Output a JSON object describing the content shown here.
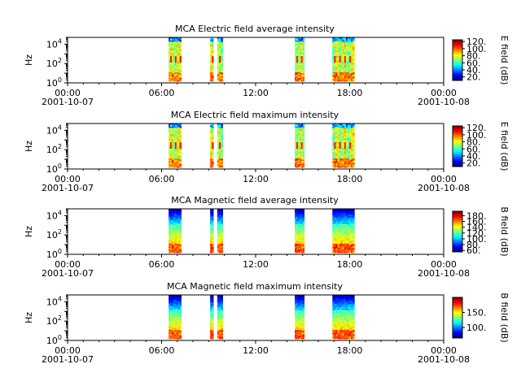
{
  "chart_data": [
    {
      "type": "heatmap",
      "title": "MCA  Electric field average intensity",
      "ylabel": "Hz",
      "colorbar_label": "E field (dB)",
      "x_ticks": [
        {
          "t": 0,
          "time": "00:00",
          "date": "2001-10-07"
        },
        {
          "t": 6,
          "time": "06:00",
          "date": ""
        },
        {
          "t": 12,
          "time": "12:00",
          "date": ""
        },
        {
          "t": 18,
          "time": "18:00",
          "date": ""
        },
        {
          "t": 24,
          "time": "00:00",
          "date": "2001-10-08"
        }
      ],
      "xlim_hours": [
        0,
        24
      ],
      "y_ticks": [
        {
          "exp": 0,
          "base": "10",
          "sup": "0"
        },
        {
          "exp": 2,
          "base": "10",
          "sup": "2"
        },
        {
          "exp": 4,
          "base": "10",
          "sup": "4"
        }
      ],
      "ylim_log10_hz": [
        0,
        4.7
      ],
      "colorbar_range": [
        10,
        125
      ],
      "colorbar_ticks": [
        "20.",
        "40.",
        "60.",
        "80.",
        "100.",
        "120."
      ],
      "colorbar_tick_values": [
        20,
        40,
        60,
        80,
        100,
        120
      ],
      "segments_hours": [
        [
          6.45,
          7.25
        ],
        [
          9.1,
          9.3
        ],
        [
          9.55,
          9.9
        ],
        [
          14.5,
          15.1
        ],
        [
          16.9,
          18.3
        ]
      ],
      "colormap": "jet",
      "field": "E"
    },
    {
      "type": "heatmap",
      "title": "MCA  Electric field maximum intensity",
      "ylabel": "Hz",
      "colorbar_label": "E field (dB)",
      "x_ticks": [
        {
          "t": 0,
          "time": "00:00",
          "date": "2001-10-07"
        },
        {
          "t": 6,
          "time": "06:00",
          "date": ""
        },
        {
          "t": 12,
          "time": "12:00",
          "date": ""
        },
        {
          "t": 18,
          "time": "18:00",
          "date": ""
        },
        {
          "t": 24,
          "time": "00:00",
          "date": "2001-10-08"
        }
      ],
      "xlim_hours": [
        0,
        24
      ],
      "y_ticks": [
        {
          "exp": 0,
          "base": "10",
          "sup": "0"
        },
        {
          "exp": 2,
          "base": "10",
          "sup": "2"
        },
        {
          "exp": 4,
          "base": "10",
          "sup": "4"
        }
      ],
      "ylim_log10_hz": [
        0,
        4.7
      ],
      "colorbar_range": [
        10,
        125
      ],
      "colorbar_ticks": [
        "20.",
        "40.",
        "60.",
        "80.",
        "100.",
        "120."
      ],
      "colorbar_tick_values": [
        20,
        40,
        60,
        80,
        100,
        120
      ],
      "segments_hours": [
        [
          6.45,
          7.25
        ],
        [
          9.1,
          9.3
        ],
        [
          9.55,
          9.9
        ],
        [
          14.5,
          15.1
        ],
        [
          16.9,
          18.3
        ]
      ],
      "colormap": "jet",
      "field": "E"
    },
    {
      "type": "heatmap",
      "title": "MCA  Magnetic field average intensity",
      "ylabel": "Hz",
      "colorbar_label": "B field (dB)",
      "x_ticks": [
        {
          "t": 0,
          "time": "00:00",
          "date": "2001-10-07"
        },
        {
          "t": 6,
          "time": "06:00",
          "date": ""
        },
        {
          "t": 12,
          "time": "12:00",
          "date": ""
        },
        {
          "t": 18,
          "time": "18:00",
          "date": ""
        },
        {
          "t": 24,
          "time": "00:00",
          "date": "2001-10-08"
        }
      ],
      "xlim_hours": [
        0,
        24
      ],
      "y_ticks": [
        {
          "exp": 0,
          "base": "10",
          "sup": "0"
        },
        {
          "exp": 2,
          "base": "10",
          "sup": "2"
        },
        {
          "exp": 4,
          "base": "10",
          "sup": "4"
        }
      ],
      "ylim_log10_hz": [
        0,
        4.7
      ],
      "colorbar_range": [
        55,
        195
      ],
      "colorbar_ticks": [
        "60.",
        "80.",
        "100.",
        "120.",
        "140.",
        "160.",
        "180."
      ],
      "colorbar_tick_values": [
        60,
        80,
        100,
        120,
        140,
        160,
        180
      ],
      "segments_hours": [
        [
          6.45,
          7.25
        ],
        [
          9.1,
          9.3
        ],
        [
          9.55,
          9.9
        ],
        [
          14.5,
          15.1
        ],
        [
          16.9,
          18.3
        ]
      ],
      "colormap": "jet",
      "field": "B"
    },
    {
      "type": "heatmap",
      "title": "MCA  Magnetic field maximum intensity",
      "ylabel": "Hz",
      "colorbar_label": "B field (dB)",
      "x_ticks": [
        {
          "t": 0,
          "time": "00:00",
          "date": "2001-10-07"
        },
        {
          "t": 6,
          "time": "06:00",
          "date": ""
        },
        {
          "t": 12,
          "time": "12:00",
          "date": ""
        },
        {
          "t": 18,
          "time": "18:00",
          "date": ""
        },
        {
          "t": 24,
          "time": "00:00",
          "date": "2001-10-08"
        }
      ],
      "xlim_hours": [
        0,
        24
      ],
      "y_ticks": [
        {
          "exp": 0,
          "base": "10",
          "sup": "0"
        },
        {
          "exp": 2,
          "base": "10",
          "sup": "2"
        },
        {
          "exp": 4,
          "base": "10",
          "sup": "4"
        }
      ],
      "ylim_log10_hz": [
        0,
        4.7
      ],
      "colorbar_range": [
        65,
        200
      ],
      "colorbar_ticks": [
        "100.",
        "150."
      ],
      "colorbar_tick_values": [
        100,
        150
      ],
      "segments_hours": [
        [
          6.45,
          7.25
        ],
        [
          9.1,
          9.3
        ],
        [
          9.55,
          9.9
        ],
        [
          14.5,
          15.1
        ],
        [
          16.9,
          18.3
        ]
      ],
      "colormap": "jet",
      "field": "B"
    }
  ]
}
